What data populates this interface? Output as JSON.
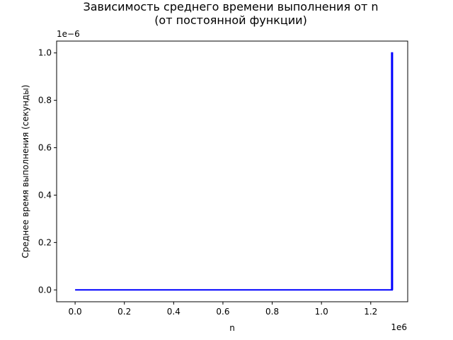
{
  "chart_data": {
    "type": "line",
    "title": [
      "Зависимость среднего времени выполнения от n",
      "(от постоянной функции)"
    ],
    "xlabel": "n",
    "ylabel": "Среднее время выполнения (секунды)",
    "x_offset_label": "1e6",
    "y_offset_label": "1e−6",
    "xlim": [
      -75000,
      1350000
    ],
    "ylim": [
      -5e-08,
      1.05e-06
    ],
    "x_ticks": [
      0,
      200000,
      400000,
      600000,
      800000,
      1000000,
      1200000
    ],
    "x_tick_labels": [
      "0.0",
      "0.2",
      "0.4",
      "0.6",
      "0.8",
      "1.0",
      "1.2"
    ],
    "y_ticks": [
      0,
      2e-07,
      4e-07,
      6e-07,
      8e-07,
      1e-06
    ],
    "y_tick_labels": [
      "0.0",
      "0.2",
      "0.4",
      "0.6",
      "0.8",
      "1.0"
    ],
    "grid": false,
    "line_color": "#0000ff",
    "series": [
      {
        "x": [
          0,
          1285000,
          1285000,
          1288000,
          1288000,
          1290000
        ],
        "y": [
          0,
          0,
          1e-06,
          1e-06,
          0,
          0
        ]
      }
    ]
  }
}
